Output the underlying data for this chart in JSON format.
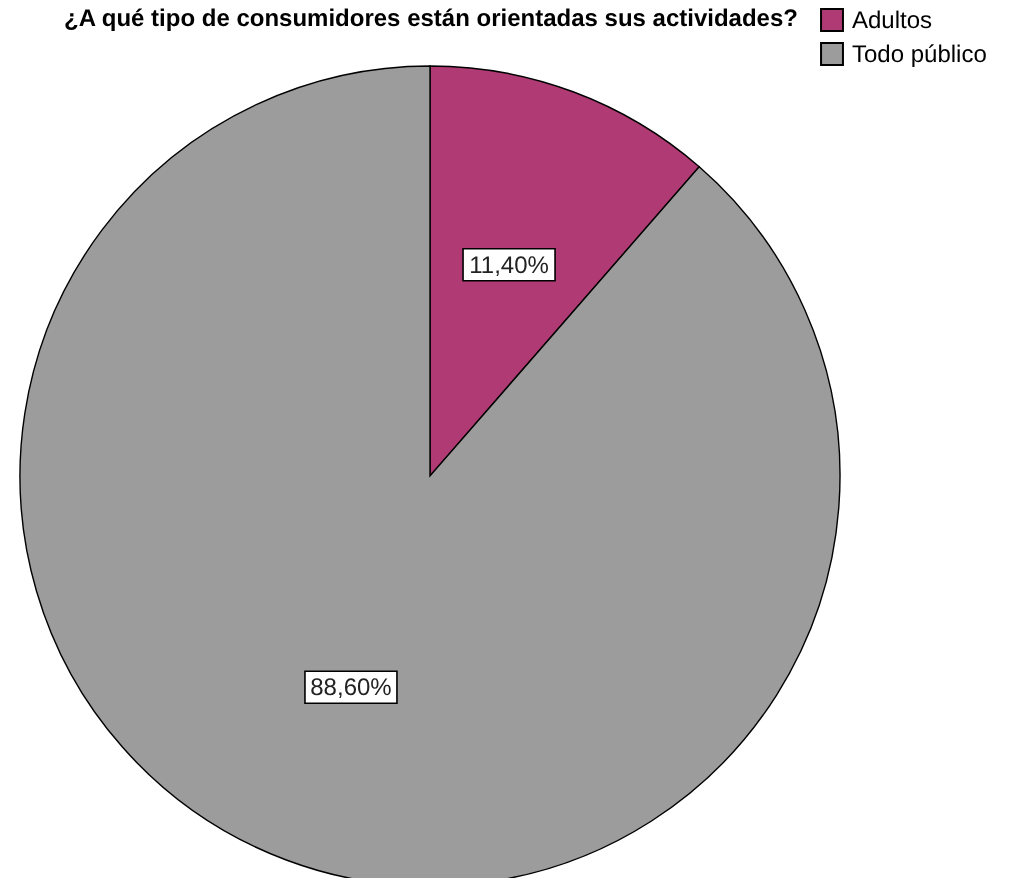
{
  "chart_data": {
    "type": "pie",
    "title": "¿A qué tipo de consumidores están orientadas sus actividades?",
    "categories": [
      "Adultos",
      "Todo público"
    ],
    "values": [
      11.4,
      88.6
    ],
    "colors": [
      "#b03a74",
      "#9c9c9c"
    ],
    "value_labels": [
      "11,40%",
      "88,60%"
    ],
    "legend": "top right"
  }
}
